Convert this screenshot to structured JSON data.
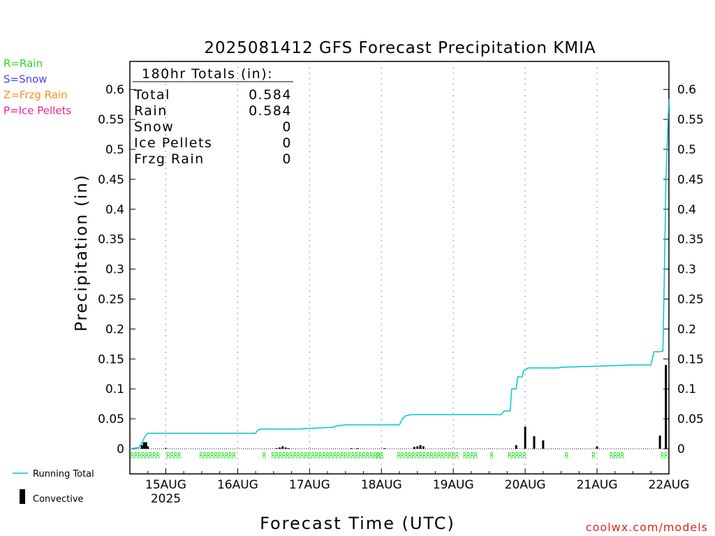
{
  "chart_data": {
    "type": "line",
    "title": "2025081412 GFS Forecast Precipitation KMIA",
    "xlabel": "Forecast Time (UTC)",
    "ylabel": "Precipitation (in)",
    "ylim": [
      0,
      0.64
    ],
    "yticks": [
      "0",
      "0.05",
      "0.1",
      "0.15",
      "0.2",
      "0.25",
      "0.3",
      "0.35",
      "0.4",
      "0.45",
      "0.5",
      "0.55",
      "0.6"
    ],
    "xlim_hours": [
      0,
      180
    ],
    "xticks": [
      {
        "hour": 12,
        "label": "15AUG",
        "sublabel": "2025"
      },
      {
        "hour": 36,
        "label": "16AUG",
        "sublabel": ""
      },
      {
        "hour": 60,
        "label": "17AUG",
        "sublabel": ""
      },
      {
        "hour": 84,
        "label": "18AUG",
        "sublabel": ""
      },
      {
        "hour": 108,
        "label": "19AUG",
        "sublabel": ""
      },
      {
        "hour": 132,
        "label": "20AUG",
        "sublabel": ""
      },
      {
        "hour": 156,
        "label": "21AUG",
        "sublabel": ""
      },
      {
        "hour": 180,
        "label": "22AUG",
        "sublabel": ""
      }
    ],
    "grid": "vertical dotted at day boundaries",
    "legend": {
      "type_keys": [
        {
          "text": "R=Rain",
          "color": "#22dd22"
        },
        {
          "text": "S=Snow",
          "color": "#4444ff"
        },
        {
          "text": "Z=Frzg Rain",
          "color": "#ff8c1a"
        },
        {
          "text": "P=Ice Pellets",
          "color": "#ee2299"
        }
      ],
      "running_total_label": "Running Total",
      "convective_label": "Convective"
    },
    "totals_box": {
      "heading": "180hr Totals (in):",
      "rows": [
        {
          "label": "Total",
          "value": "0.584"
        },
        {
          "label": "Rain",
          "value": "0.584"
        },
        {
          "label": "Snow",
          "value": "0"
        },
        {
          "label": "Ice Pellets",
          "value": "0"
        },
        {
          "label": "Frzg Rain",
          "value": "0"
        }
      ]
    },
    "series": [
      {
        "name": "Running Total",
        "color": "#00c8c8",
        "x": [
          0,
          3,
          4,
          4.5,
          5,
          6,
          42,
          42.5,
          43,
          44,
          52,
          56,
          68,
          69,
          72,
          78,
          90,
          90.5,
          91,
          92,
          94,
          124,
          125,
          127,
          127.5,
          129,
          129.5,
          131,
          131.5,
          133,
          143,
          144,
          156,
          168,
          174,
          175,
          176,
          177,
          178,
          178.5,
          179,
          180
        ],
        "y": [
          0,
          0.002,
          0.01,
          0.015,
          0.02,
          0.026,
          0.026,
          0.03,
          0.032,
          0.033,
          0.033,
          0.033,
          0.036,
          0.038,
          0.04,
          0.04,
          0.04,
          0.045,
          0.05,
          0.055,
          0.057,
          0.057,
          0.063,
          0.063,
          0.1,
          0.1,
          0.12,
          0.12,
          0.13,
          0.135,
          0.135,
          0.136,
          0.138,
          0.14,
          0.14,
          0.162,
          0.162,
          0.162,
          0.163,
          0.3,
          0.45,
          0.584
        ]
      },
      {
        "name": "Convective",
        "type": "bar",
        "color": "#000000",
        "x": [
          4,
          4.7,
          5.4,
          6,
          12,
          49,
          50,
          51,
          52,
          53,
          74,
          76,
          85,
          95,
          96,
          97,
          98,
          129,
          132,
          135,
          138,
          156,
          177,
          179
        ],
        "y": [
          0.006,
          0.011,
          0.011,
          0.004,
          0.001,
          0.001,
          0.002,
          0.004,
          0.002,
          0.001,
          0.001,
          0.001,
          0.001,
          0.003,
          0.004,
          0.006,
          0.004,
          0.006,
          0.037,
          0.021,
          0.014,
          0.004,
          0.022,
          0.14
        ]
      }
    ],
    "type_markers": {
      "color": "#22dd22",
      "groups": [
        {
          "text": "RRRRRRRR",
          "hour": 0
        },
        {
          "text": "RRRR",
          "hour": 12
        },
        {
          "text": "RRRRRRRRRR",
          "hour": 23
        },
        {
          "text": "R",
          "hour": 44
        },
        {
          "text": "RRRRRRRRRRRRRRRRRRRRRRRRRRRRRR",
          "hour": 47
        },
        {
          "text": "RR",
          "hour": 82
        },
        {
          "text": "RRRRRRRRRRRRRRRRR",
          "hour": 89
        },
        {
          "text": "RRRR",
          "hour": 111
        },
        {
          "text": "R",
          "hour": 120
        },
        {
          "text": "RRRRR",
          "hour": 126
        },
        {
          "text": "R",
          "hour": 145
        },
        {
          "text": "R",
          "hour": 154
        },
        {
          "text": "RRRR",
          "hour": 160
        },
        {
          "text": "RR",
          "hour": 177
        }
      ]
    }
  },
  "watermark": "coolwx.com/models"
}
